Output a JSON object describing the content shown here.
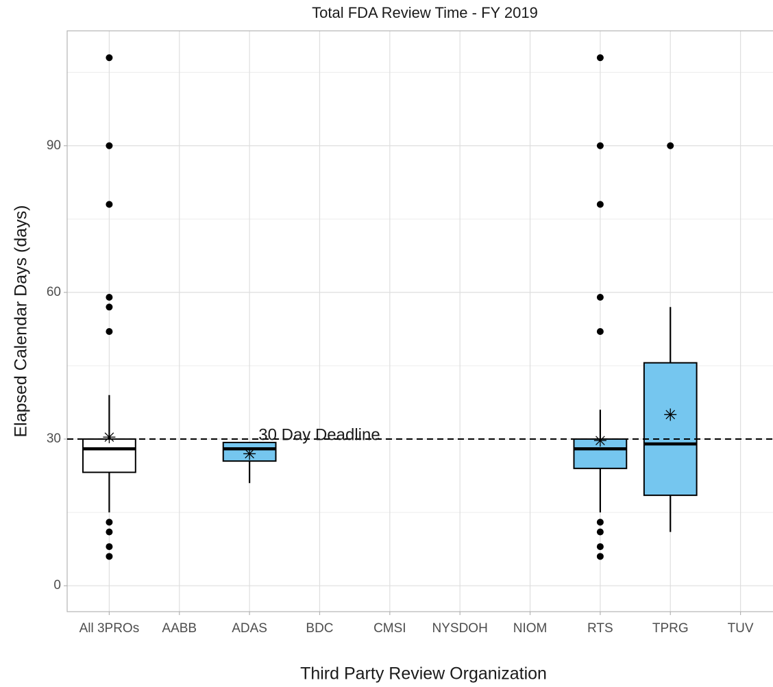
{
  "chart_data": {
    "type": "box",
    "title": "Total FDA Review Time - FY 2019",
    "x_label": "Third Party Review Organization",
    "y_label": "Elapsed Calendar Days (days)",
    "categories": [
      "All 3PROs",
      "AABB",
      "ADAS",
      "BDC",
      "CMSI",
      "NYSDOH",
      "NIOM",
      "RTS",
      "TPRG",
      "TUV"
    ],
    "boxes": [
      {
        "low": 15,
        "q1": 23.2,
        "median": 28,
        "q3": 30,
        "high": 39,
        "mean": 30.4,
        "outliers": [
          108,
          90,
          78,
          59,
          57,
          52,
          13,
          11,
          8,
          6
        ],
        "color": "#ffffff"
      },
      null,
      {
        "low": 21,
        "q1": 25.5,
        "median": 28,
        "q3": 29.3,
        "high": 29.3,
        "mean": 27,
        "outliers": [],
        "color": "#75c6ef"
      },
      null,
      null,
      null,
      null,
      {
        "low": 15,
        "q1": 24,
        "median": 28,
        "q3": 30,
        "high": 36,
        "mean": 29.7,
        "outliers": [
          108,
          90,
          78,
          59,
          52,
          13,
          11,
          8,
          6
        ],
        "color": "#75c6ef"
      },
      {
        "low": 11,
        "q1": 18.5,
        "median": 29,
        "q3": 45.6,
        "high": 57,
        "mean": 35,
        "outliers": [
          90
        ],
        "color": "#75c6ef"
      },
      null
    ],
    "reference_line": {
      "value": 30,
      "label": "30 Day Deadline"
    },
    "ylim": [
      -5.3,
      113.5
    ],
    "yticks": [
      0,
      30,
      60,
      90
    ],
    "yminor": [
      15,
      45,
      75,
      105
    ],
    "grid": true
  }
}
